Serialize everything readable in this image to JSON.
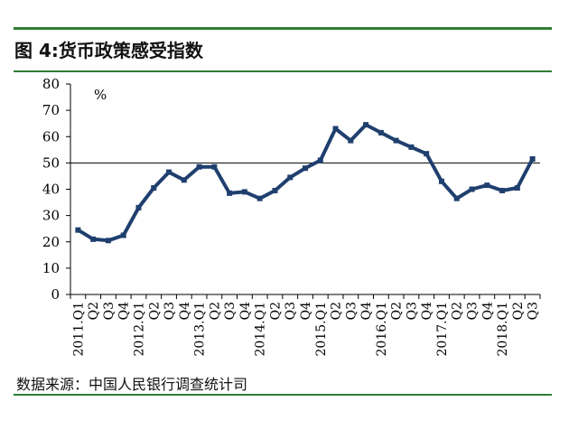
{
  "header": {
    "title": "图 4:货币政策感受指数"
  },
  "footer": {
    "source": "数据来源：中国人民银行调查统计司"
  },
  "chart_data": {
    "type": "line",
    "title": "图 4:货币政策感受指数",
    "unit_label": "%",
    "ylim": [
      0,
      80
    ],
    "yticks": [
      0,
      10,
      20,
      30,
      40,
      50,
      60,
      70,
      80
    ],
    "reference_line": 50,
    "grid": false,
    "series_color": "#1f3f6e",
    "x": [
      "2011.Q1",
      "Q2",
      "Q3",
      "Q4",
      "2012.Q1",
      "Q2",
      "Q3",
      "Q4",
      "2013.Q1",
      "Q2",
      "Q3",
      "Q4",
      "2014.Q1",
      "Q2",
      "Q3",
      "Q4",
      "2015.Q1",
      "Q2",
      "Q3",
      "Q4",
      "2016.Q1",
      "Q2",
      "Q3",
      "Q4",
      "2017.Q1",
      "Q2",
      "Q3",
      "Q4",
      "2018.Q1",
      "Q2",
      "Q3"
    ],
    "series": [
      {
        "values": [
          24.5,
          21,
          20.5,
          22.5,
          33,
          40.5,
          46.5,
          43.5,
          48.5,
          48.5,
          38.5,
          39,
          36.5,
          39.5,
          44.5,
          48,
          51,
          63,
          58.5,
          64.5,
          61.5,
          58.5,
          56,
          53.5,
          43,
          36.5,
          40,
          41.5,
          39.5,
          40.5,
          51.5
        ]
      }
    ]
  }
}
